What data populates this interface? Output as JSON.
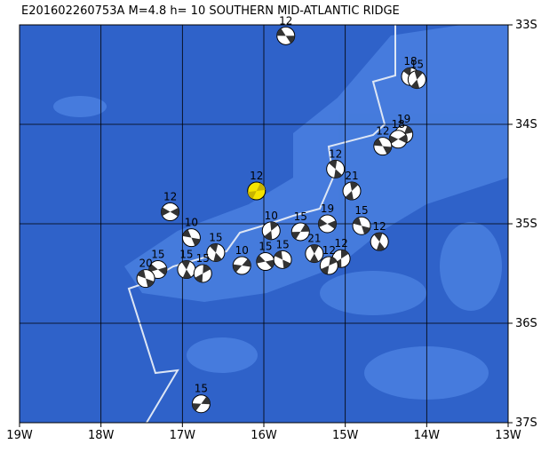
{
  "title": "E201602260753A M=4.8 h= 10 SOUTHERN MID-ATLANTIC RIDGE",
  "xlim": [
    -19,
    -13
  ],
  "ylim": [
    -37,
    -33
  ],
  "xticks": [
    {
      "value": -19,
      "label": "19W"
    },
    {
      "value": -18,
      "label": "18W"
    },
    {
      "value": -17,
      "label": "17W"
    },
    {
      "value": -16,
      "label": "16W"
    },
    {
      "value": -15,
      "label": "15W"
    },
    {
      "value": -14,
      "label": "14W"
    },
    {
      "value": -13,
      "label": "13W"
    }
  ],
  "yticks": [
    {
      "value": -33,
      "label": "33S"
    },
    {
      "value": -34,
      "label": "34S"
    },
    {
      "value": -35,
      "label": "35S"
    },
    {
      "value": -36,
      "label": "36S"
    },
    {
      "value": -37,
      "label": "37S"
    }
  ],
  "events": [
    {
      "depth": 12,
      "lon": -15.73,
      "lat": -33.11
    },
    {
      "depth": 18,
      "lon": -14.2,
      "lat": -33.52
    },
    {
      "depth": 15,
      "lon": -14.12,
      "lat": -33.55
    },
    {
      "depth": 19,
      "lon": -14.28,
      "lat": -34.1
    },
    {
      "depth": 18,
      "lon": -14.35,
      "lat": -34.15
    },
    {
      "depth": 12,
      "lon": -14.54,
      "lat": -34.22
    },
    {
      "depth": 12,
      "lon": -15.12,
      "lat": -34.45
    },
    {
      "depth": 21,
      "lon": -14.92,
      "lat": -34.67
    },
    {
      "depth": 12,
      "lon": -16.09,
      "lat": -34.67,
      "color": "#f5e400"
    },
    {
      "depth": 12,
      "lon": -17.15,
      "lat": -34.88
    },
    {
      "depth": 10,
      "lon": -16.89,
      "lat": -35.14
    },
    {
      "depth": 15,
      "lon": -16.59,
      "lat": -35.29
    },
    {
      "depth": 10,
      "lon": -15.91,
      "lat": -35.07
    },
    {
      "depth": 15,
      "lon": -15.55,
      "lat": -35.08
    },
    {
      "depth": 19,
      "lon": -15.22,
      "lat": -35.0
    },
    {
      "depth": 15,
      "lon": -14.8,
      "lat": -35.02
    },
    {
      "depth": 12,
      "lon": -14.58,
      "lat": -35.18
    },
    {
      "depth": 12,
      "lon": -15.05,
      "lat": -35.35
    },
    {
      "depth": 15,
      "lon": -16.77,
      "lat": -36.81
    },
    {
      "depth": 15,
      "lon": -17.3,
      "lat": -35.46
    },
    {
      "depth": 20,
      "lon": -17.45,
      "lat": -35.55
    },
    {
      "depth": 15,
      "lon": -16.95,
      "lat": -35.46
    },
    {
      "depth": 15,
      "lon": -16.75,
      "lat": -35.5
    },
    {
      "depth": 10,
      "lon": -16.27,
      "lat": -35.42
    },
    {
      "depth": 15,
      "lon": -15.98,
      "lat": -35.38
    },
    {
      "depth": 15,
      "lon": -15.77,
      "lat": -35.36
    },
    {
      "depth": 21,
      "lon": -15.38,
      "lat": -35.3
    },
    {
      "depth": 12,
      "lon": -15.2,
      "lat": -35.42
    }
  ]
}
